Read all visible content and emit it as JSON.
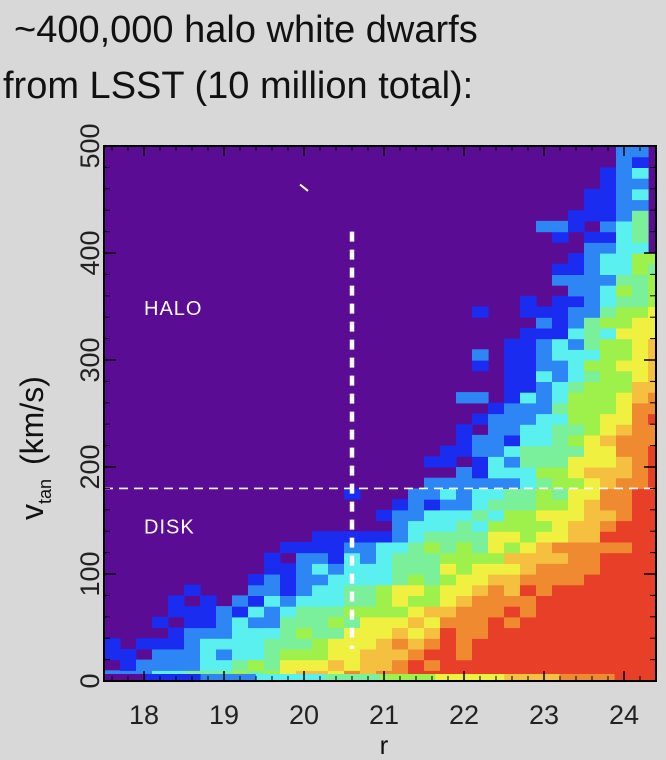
{
  "title": {
    "line1": "~400,000 halo white dwarfs",
    "line2": "from LSST (10 million total):"
  },
  "chart_data": {
    "type": "heatmap",
    "title": "~400,000 halo white dwarfs from LSST (10 million total):",
    "xlabel": "r",
    "ylabel_main": "v",
    "ylabel_sub": "tan",
    "ylabel_units": "(km/s)",
    "xlim": [
      17.5,
      24.4
    ],
    "ylim": [
      0,
      500
    ],
    "xticks": [
      "18",
      "19",
      "20",
      "21",
      "22",
      "23",
      "24"
    ],
    "xtick_values": [
      18,
      19,
      20,
      21,
      22,
      23,
      24
    ],
    "yticks": [
      "0",
      "100",
      "200",
      "300",
      "400",
      "500"
    ],
    "ytick_values": [
      0,
      100,
      200,
      300,
      400,
      500
    ],
    "bin_width_r": 0.2,
    "bin_width_v": 10,
    "colormap": [
      "#5a0c94",
      "#1a2cf0",
      "#2e86f5",
      "#5af0f0",
      "#7af09a",
      "#9ef04a",
      "#f0f040",
      "#f5c040",
      "#f08a30",
      "#e84028"
    ],
    "background_color": "#5a0c94",
    "annotations": [
      {
        "text": "HALO",
        "x": 18.0,
        "y": 342
      },
      {
        "text": "DISK",
        "x": 18.0,
        "y": 138
      }
    ],
    "disk_halo_boundary_v": 180,
    "magnitude_cut_r": 20.6,
    "magnitude_cut_vmax": 420
  }
}
